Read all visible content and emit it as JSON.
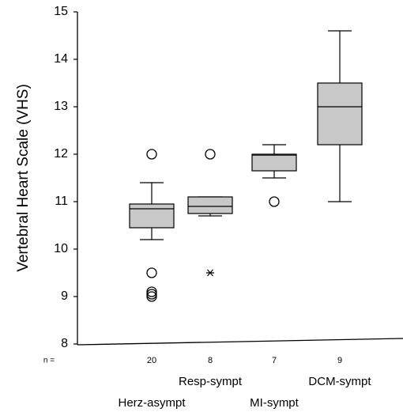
{
  "chart_data": {
    "type": "box",
    "y_label": "Vertebral Heart Scale (VHS)",
    "categories": [
      "Herz-asympt",
      "Resp-sympt",
      "MI-sympt",
      "DCM-sympt"
    ],
    "n_label": "n =",
    "n": [
      20,
      8,
      7,
      9
    ],
    "color": "#c8c8c8",
    "ylim": [
      8,
      15
    ],
    "yticks": [
      8,
      9,
      10,
      11,
      12,
      13,
      14,
      15
    ],
    "boxes": [
      {
        "whisker_low": 10.2,
        "q1": 10.45,
        "median": 10.85,
        "q3": 10.95,
        "whisker_high": 11.4,
        "outliers": [
          12.0,
          9.5,
          9.1,
          9.05,
          9.0
        ],
        "extremes": []
      },
      {
        "whisker_low": 10.7,
        "q1": 10.75,
        "median": 10.9,
        "q3": 11.1,
        "whisker_high": 11.1,
        "outliers": [
          12.0
        ],
        "extremes": [
          9.5
        ]
      },
      {
        "whisker_low": 11.5,
        "q1": 11.65,
        "median": 11.98,
        "q3": 12.0,
        "whisker_high": 12.2,
        "outliers": [
          11.0
        ],
        "extremes": []
      },
      {
        "whisker_low": 11.0,
        "q1": 12.2,
        "median": 13.0,
        "q3": 13.5,
        "whisker_high": 14.6,
        "outliers": [],
        "extremes": []
      }
    ]
  }
}
